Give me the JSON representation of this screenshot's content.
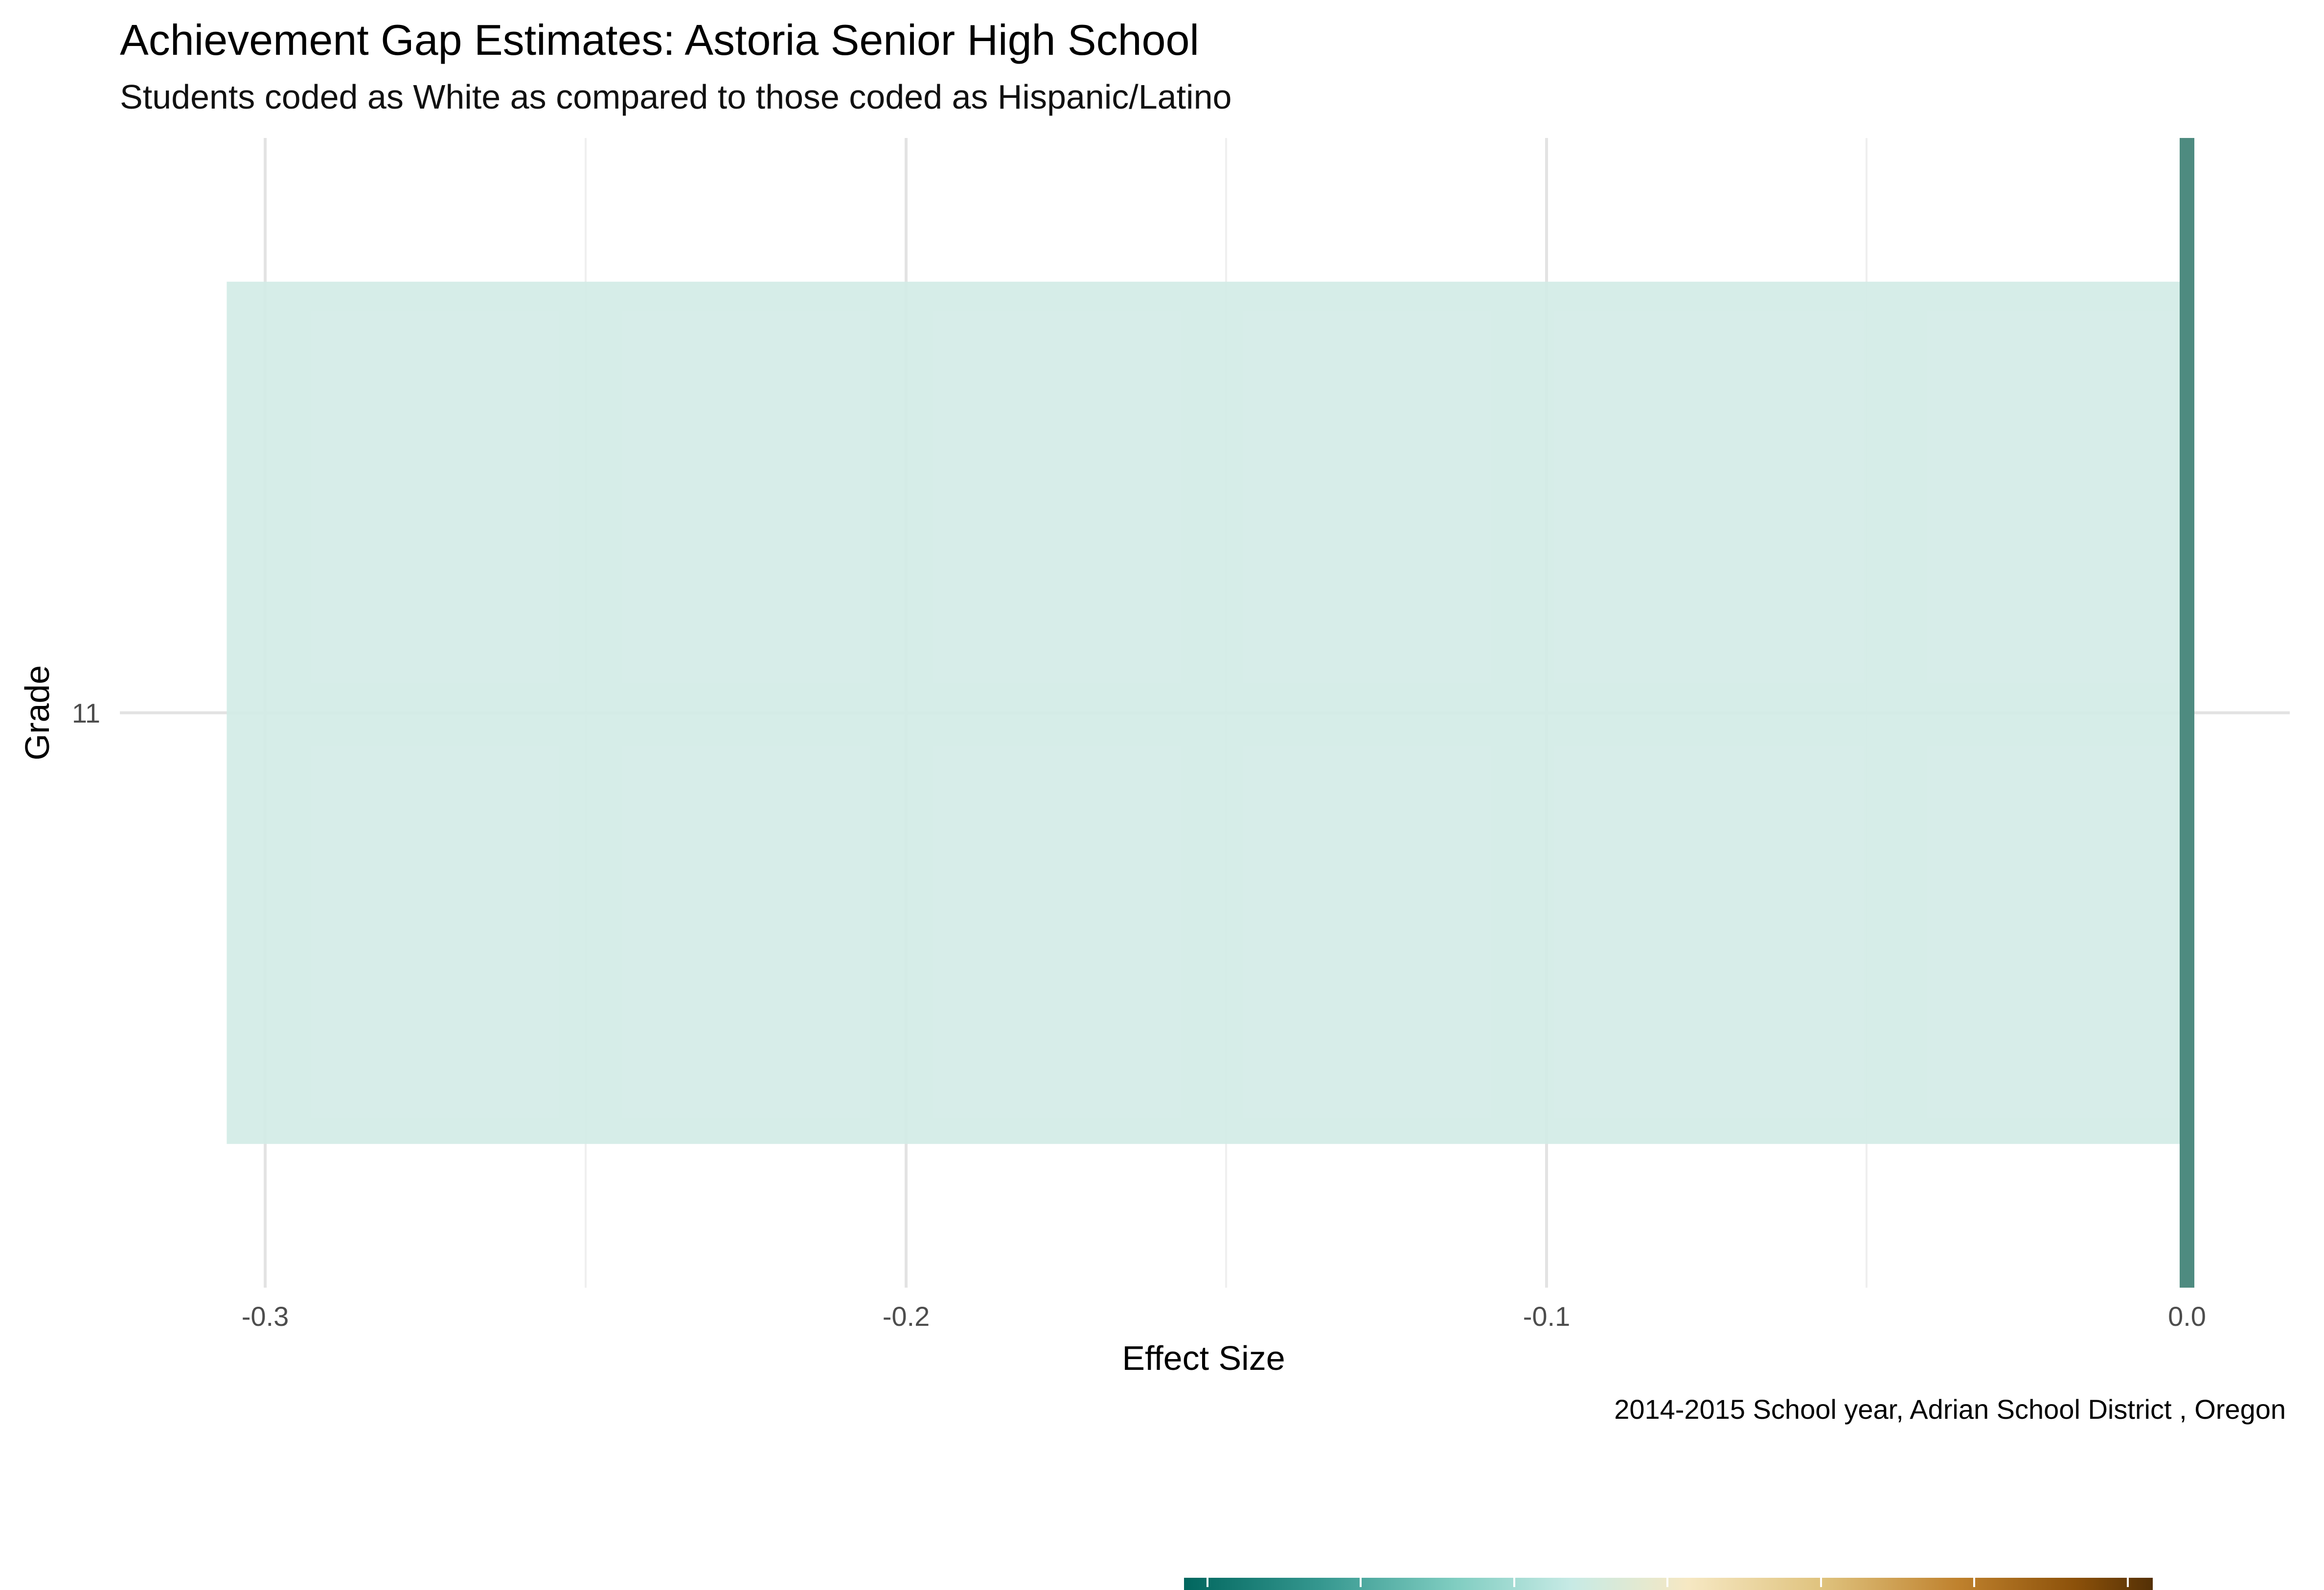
{
  "chart_data": {
    "type": "bar",
    "orientation": "horizontal",
    "title": "Achievement Gap Estimates: Astoria Senior High School",
    "subtitle": "Students coded as White as compared to those coded as Hispanic/Latino",
    "xlabel": "Effect Size",
    "ylabel": "Grade",
    "caption": "2014-2015 School year,  Adrian School District , Oregon",
    "categories": [
      "11"
    ],
    "values": [
      -0.306
    ],
    "xlim": [
      -0.323,
      0.012
    ],
    "x_ticks": [
      -0.3,
      -0.2,
      -0.1,
      0.0
    ],
    "x_tick_labels": [
      "-0.3",
      "-0.2",
      "-0.1",
      "0.0"
    ],
    "reference_line": 0.0,
    "grid": true,
    "legend": "bottom",
    "colors": {
      "bar_fill": "#d2ebe6",
      "reference_line": "#4e8b80",
      "grid_major": "#e3e3e3",
      "grid_minor": "#efefef",
      "scale": [
        "#01665e",
        "#35978f",
        "#80cdc1",
        "#c7eae5",
        "#f6e8c3",
        "#dfc27d",
        "#bf812d",
        "#8c510a",
        "#543005"
      ]
    }
  }
}
